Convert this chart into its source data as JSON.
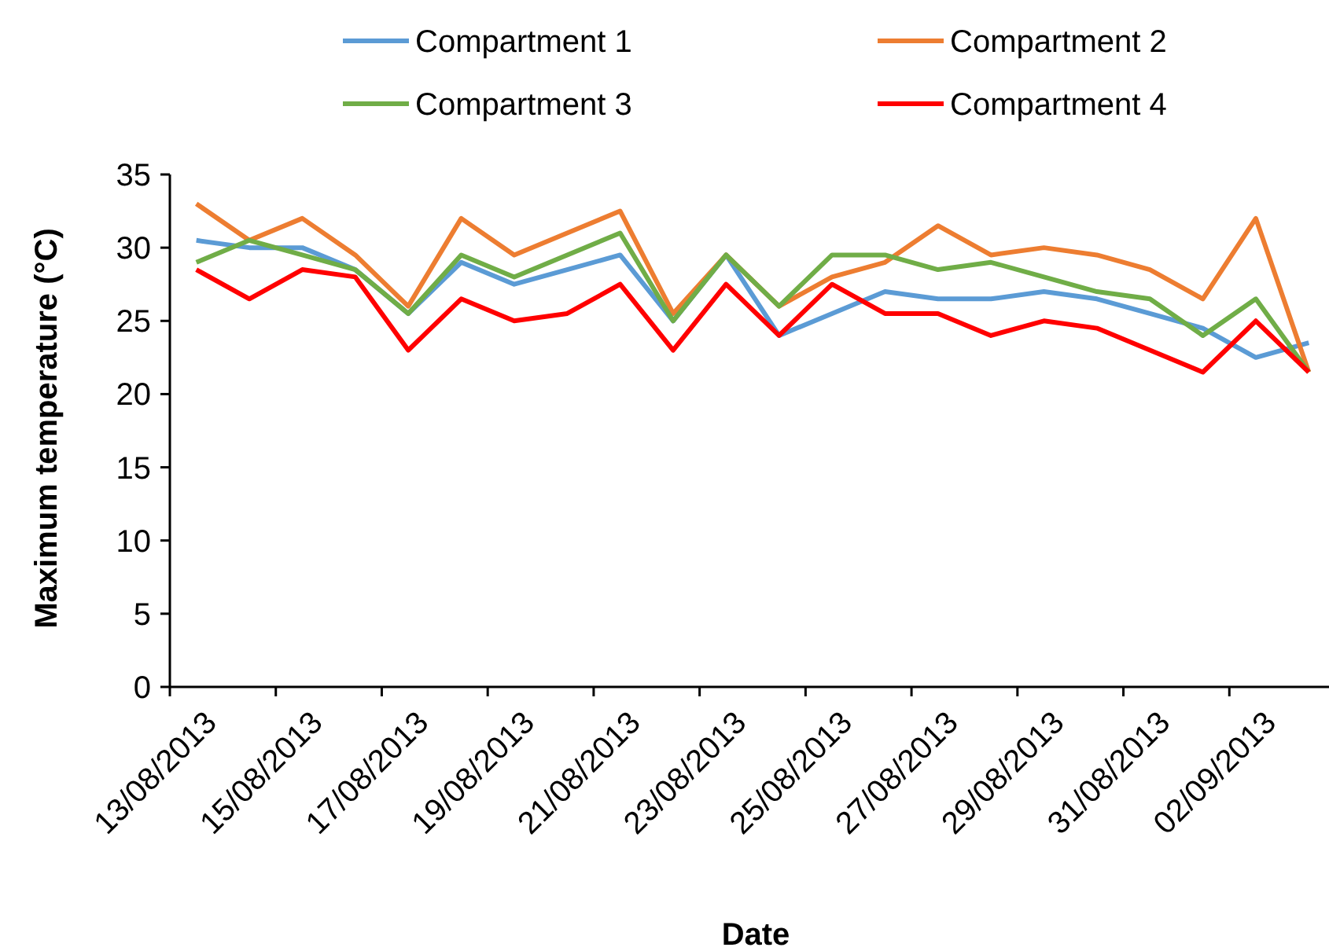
{
  "chart_data": {
    "type": "line",
    "xlabel": "Date",
    "ylabel": "Maximum temperature (°C)",
    "categories": [
      "13/08/2013",
      null,
      "15/08/2013",
      null,
      "17/08/2013",
      null,
      "19/08/2013",
      null,
      "21/08/2013",
      null,
      "23/08/2013",
      null,
      "25/08/2013",
      null,
      "27/08/2013",
      null,
      "29/08/2013",
      null,
      "31/08/2013",
      null,
      "02/09/2013",
      null
    ],
    "series": [
      {
        "name": "Compartment 1",
        "color": "#5b9bd5",
        "values": [
          30.5,
          30,
          30,
          28.5,
          25.5,
          29,
          27.5,
          28.5,
          29.5,
          25,
          29.5,
          24,
          25.5,
          27,
          26.5,
          26.5,
          27,
          26.5,
          25.5,
          24.5,
          22.5,
          23.5
        ]
      },
      {
        "name": "Compartment 2",
        "color": "#ed7d31",
        "values": [
          33,
          30.5,
          32,
          29.5,
          26,
          32,
          29.5,
          31,
          32.5,
          25.5,
          29.5,
          26,
          28,
          29,
          31.5,
          29.5,
          30,
          29.5,
          28.5,
          26.5,
          32,
          21.5
        ]
      },
      {
        "name": "Compartment 3",
        "color": "#70ad47",
        "values": [
          29,
          30.5,
          29.5,
          28.5,
          25.5,
          29.5,
          28,
          29.5,
          31,
          25,
          29.5,
          26,
          29.5,
          29.5,
          28.5,
          29,
          28,
          27,
          26.5,
          24,
          26.5,
          21.5
        ]
      },
      {
        "name": "Compartment 4",
        "color": "#ff0000",
        "values": [
          28.5,
          26.5,
          28.5,
          28,
          23,
          26.5,
          25,
          25.5,
          27.5,
          23,
          27.5,
          24,
          27.5,
          25.5,
          25.5,
          24,
          25,
          24.5,
          23,
          21.5,
          25,
          21.5
        ]
      }
    ],
    "ylim": [
      0,
      35
    ],
    "yticks": [
      0,
      5,
      10,
      15,
      20,
      25,
      30,
      35
    ],
    "grid": false,
    "legend": "top",
    "marker": "none",
    "line_style": "solid"
  }
}
